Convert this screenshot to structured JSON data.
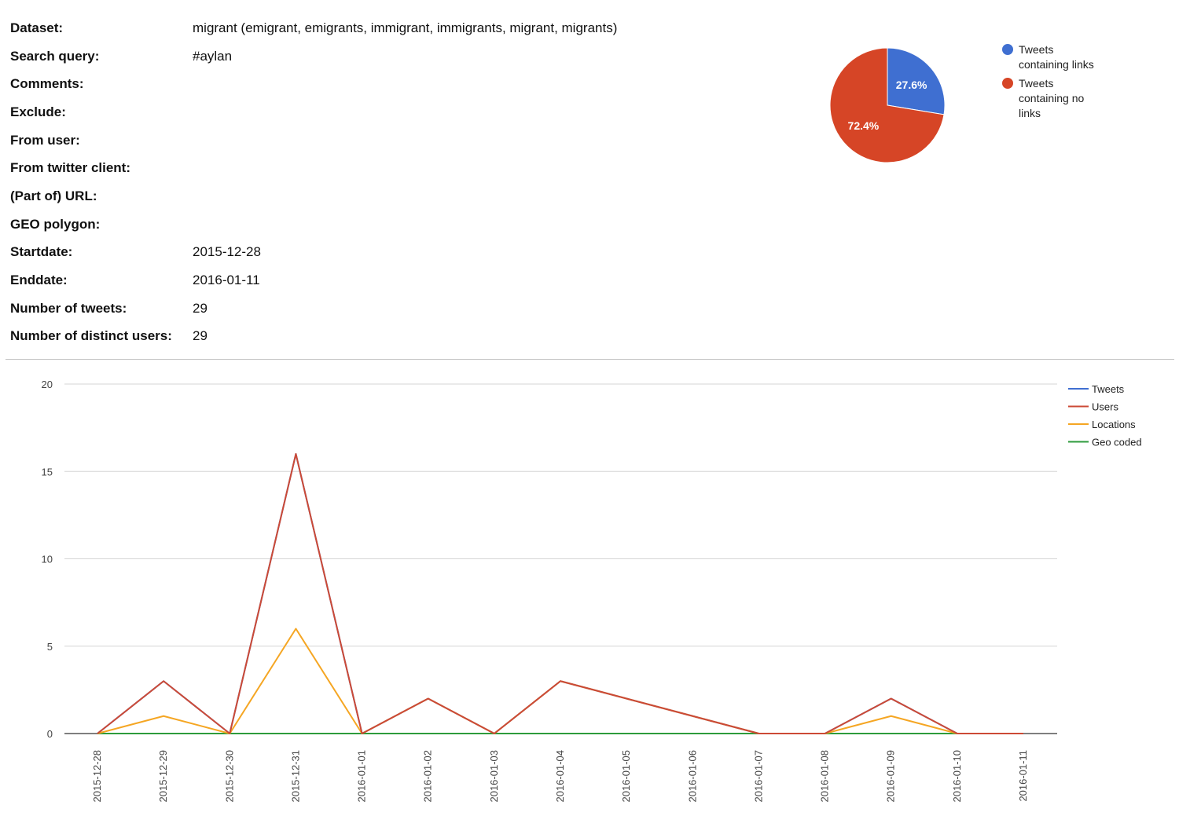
{
  "metadata": [
    {
      "label": "Dataset:",
      "value": "migrant (emigrant, emigrants, immigrant, immigrants, migrant, migrants)"
    },
    {
      "label": "Search query:",
      "value": "#aylan"
    },
    {
      "label": "Comments:",
      "value": ""
    },
    {
      "label": "Exclude:",
      "value": ""
    },
    {
      "label": "From user:",
      "value": ""
    },
    {
      "label": "From twitter client:",
      "value": ""
    },
    {
      "label": "(Part of) URL:",
      "value": ""
    },
    {
      "label": "GEO polygon:",
      "value": ""
    },
    {
      "label": "Startdate:",
      "value": "2015-12-28"
    },
    {
      "label": "Enddate:",
      "value": "2016-01-11"
    },
    {
      "label": "Number of tweets:",
      "value": "29"
    },
    {
      "label": "Number of distinct users:",
      "value": "29"
    }
  ],
  "chart_data": [
    {
      "type": "pie",
      "slices": [
        {
          "name": "Tweets containing links",
          "value": 27.6,
          "label": "27.6%",
          "color": "#3f6fd1",
          "legend_lines": [
            "Tweets",
            "containing links"
          ]
        },
        {
          "name": "Tweets containing no links",
          "value": 72.4,
          "label": "72.4%",
          "color": "#d64526",
          "legend_lines": [
            "Tweets",
            "containing no",
            "links"
          ]
        }
      ],
      "legend": "right"
    },
    {
      "type": "line",
      "x": [
        "2015-12-28",
        "2015-12-29",
        "2015-12-30",
        "2015-12-31",
        "2016-01-01",
        "2016-01-02",
        "2016-01-03",
        "2016-01-04",
        "2016-01-05",
        "2016-01-06",
        "2016-01-07",
        "2016-01-08",
        "2016-01-09",
        "2016-01-10",
        "2016-01-11"
      ],
      "ylim": [
        0,
        20
      ],
      "yticks": [
        0,
        5,
        10,
        15,
        20
      ],
      "grid": true,
      "legend": "right",
      "series": [
        {
          "name": "Tweets",
          "color": "#3f6fd1",
          "values": [
            0,
            3,
            0,
            16,
            0,
            2,
            0,
            3,
            2,
            1,
            0,
            0,
            2,
            0,
            0
          ]
        },
        {
          "name": "Users",
          "color": "#cc4a36",
          "values": [
            0,
            3,
            0,
            16,
            0,
            2,
            0,
            3,
            2,
            1,
            0,
            0,
            2,
            0,
            0
          ]
        },
        {
          "name": "Locations",
          "color": "#f5a623",
          "values": [
            0,
            1,
            0,
            6,
            0,
            2,
            0,
            3,
            2,
            1,
            0,
            0,
            1,
            0,
            0
          ]
        },
        {
          "name": "Geo coded",
          "color": "#2e9b3c",
          "values": [
            0,
            0,
            0,
            0,
            0,
            0,
            0,
            0,
            0,
            0,
            0,
            0,
            0,
            0,
            0
          ]
        }
      ]
    }
  ]
}
